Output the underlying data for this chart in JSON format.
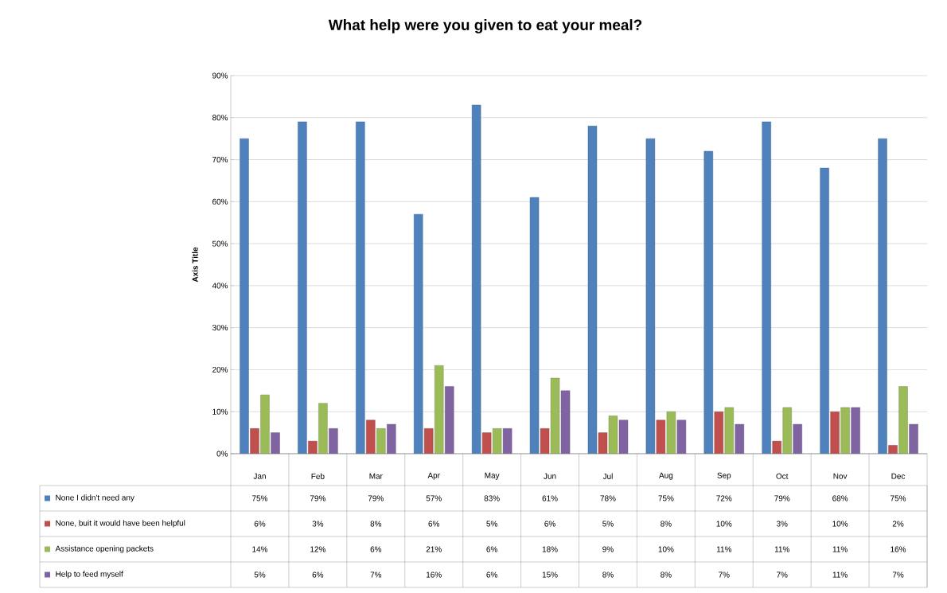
{
  "chart_data": {
    "type": "bar",
    "title": "What help were you given to eat your meal?",
    "ylabel": "Axis Title",
    "categories": [
      "Jan",
      "Feb",
      "Mar",
      "Apr",
      "May",
      "Jun",
      "Jul",
      "Aug",
      "Sep",
      "Oct",
      "Nov",
      "Dec"
    ],
    "ylim": [
      0,
      90
    ],
    "yticks": [
      {
        "value": 0,
        "label": "0%"
      },
      {
        "value": 10,
        "label": "10%"
      },
      {
        "value": 20,
        "label": "20%"
      },
      {
        "value": 30,
        "label": "30%"
      },
      {
        "value": 40,
        "label": "40%"
      },
      {
        "value": 50,
        "label": "50%"
      },
      {
        "value": 60,
        "label": "60%"
      },
      {
        "value": 70,
        "label": "70%"
      },
      {
        "value": 80,
        "label": "80%"
      },
      {
        "value": 90,
        "label": "90%"
      }
    ],
    "grid": "y",
    "legend": "bottom",
    "series": [
      {
        "name": "None I didn't need any",
        "color": "#4f81bd",
        "values": [
          75,
          79,
          79,
          57,
          83,
          61,
          78,
          75,
          72,
          79,
          68,
          75
        ],
        "value_labels": [
          "75%",
          "79%",
          "79%",
          "57%",
          "83%",
          "61%",
          "78%",
          "75%",
          "72%",
          "79%",
          "68%",
          "75%"
        ]
      },
      {
        "name": "None, buit it would have been helpful",
        "color": "#c0504d",
        "values": [
          6,
          3,
          8,
          6,
          5,
          6,
          5,
          8,
          10,
          3,
          10,
          2
        ],
        "value_labels": [
          "6%",
          "3%",
          "8%",
          "6%",
          "5%",
          "6%",
          "5%",
          "8%",
          "10%",
          "3%",
          "10%",
          "2%"
        ]
      },
      {
        "name": "Assistance opening packets",
        "color": "#9bbb59",
        "values": [
          14,
          12,
          6,
          21,
          6,
          18,
          9,
          10,
          11,
          11,
          11,
          16
        ],
        "value_labels": [
          "14%",
          "12%",
          "6%",
          "21%",
          "6%",
          "18%",
          "9%",
          "10%",
          "11%",
          "11%",
          "11%",
          "16%"
        ]
      },
      {
        "name": "Help to feed myself",
        "color": "#8064a2",
        "values": [
          5,
          6,
          7,
          16,
          6,
          15,
          8,
          8,
          7,
          7,
          11,
          7
        ],
        "value_labels": [
          "5%",
          "6%",
          "7%",
          "16%",
          "6%",
          "15%",
          "8%",
          "8%",
          "7%",
          "7%",
          "11%",
          "7%"
        ]
      }
    ]
  }
}
